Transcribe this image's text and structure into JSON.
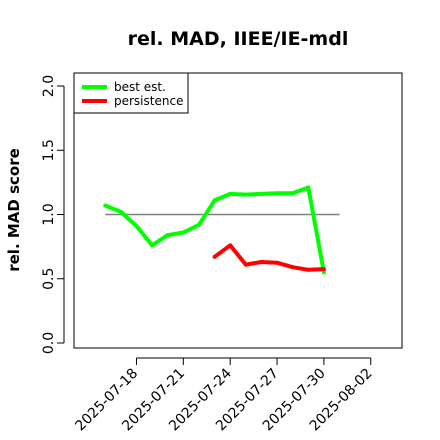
{
  "chart_data": {
    "type": "line",
    "title": "rel. MAD, IIEE/IE-mdl",
    "xlabel": "",
    "ylabel": "rel. MAD score",
    "xlim": [
      "2025-07-14",
      "2025-08-04"
    ],
    "ylim": [
      0,
      2
    ],
    "x_ticks": [
      "2025-07-18",
      "2025-07-21",
      "2025-07-24",
      "2025-07-27",
      "2025-07-30",
      "2025-08-02"
    ],
    "y_ticks": [
      "0.0",
      "0.5",
      "1.0",
      "1.5",
      "2.0"
    ],
    "reference_line": {
      "y": 1.0,
      "x_start": "2025-07-16",
      "x_end": "2025-07-31",
      "color": "#808080"
    },
    "legend": {
      "position": "top-left"
    },
    "series": [
      {
        "name": "best est.",
        "color": "#00ff00",
        "points": [
          {
            "x": "2025-07-16",
            "y": 1.07
          },
          {
            "x": "2025-07-17",
            "y": 1.02
          },
          {
            "x": "2025-07-18",
            "y": 0.91
          },
          {
            "x": "2025-07-19",
            "y": 0.76
          },
          {
            "x": "2025-07-20",
            "y": 0.84
          },
          {
            "x": "2025-07-21",
            "y": 0.86
          },
          {
            "x": "2025-07-22",
            "y": 0.92
          },
          {
            "x": "2025-07-23",
            "y": 1.11
          },
          {
            "x": "2025-07-24",
            "y": 1.16
          },
          {
            "x": "2025-07-25",
            "y": 1.155
          },
          {
            "x": "2025-07-26",
            "y": 1.16
          },
          {
            "x": "2025-07-27",
            "y": 1.165
          },
          {
            "x": "2025-07-28",
            "y": 1.165
          },
          {
            "x": "2025-07-29",
            "y": 1.21
          },
          {
            "x": "2025-07-30",
            "y": 0.55
          }
        ]
      },
      {
        "name": "persistence",
        "color": "#ff0000",
        "points": [
          {
            "x": "2025-07-23",
            "y": 0.67
          },
          {
            "x": "2025-07-24",
            "y": 0.76
          },
          {
            "x": "2025-07-25",
            "y": 0.61
          },
          {
            "x": "2025-07-26",
            "y": 0.63
          },
          {
            "x": "2025-07-27",
            "y": 0.625
          },
          {
            "x": "2025-07-28",
            "y": 0.59
          },
          {
            "x": "2025-07-29",
            "y": 0.57
          },
          {
            "x": "2025-07-30",
            "y": 0.575
          }
        ]
      }
    ]
  }
}
